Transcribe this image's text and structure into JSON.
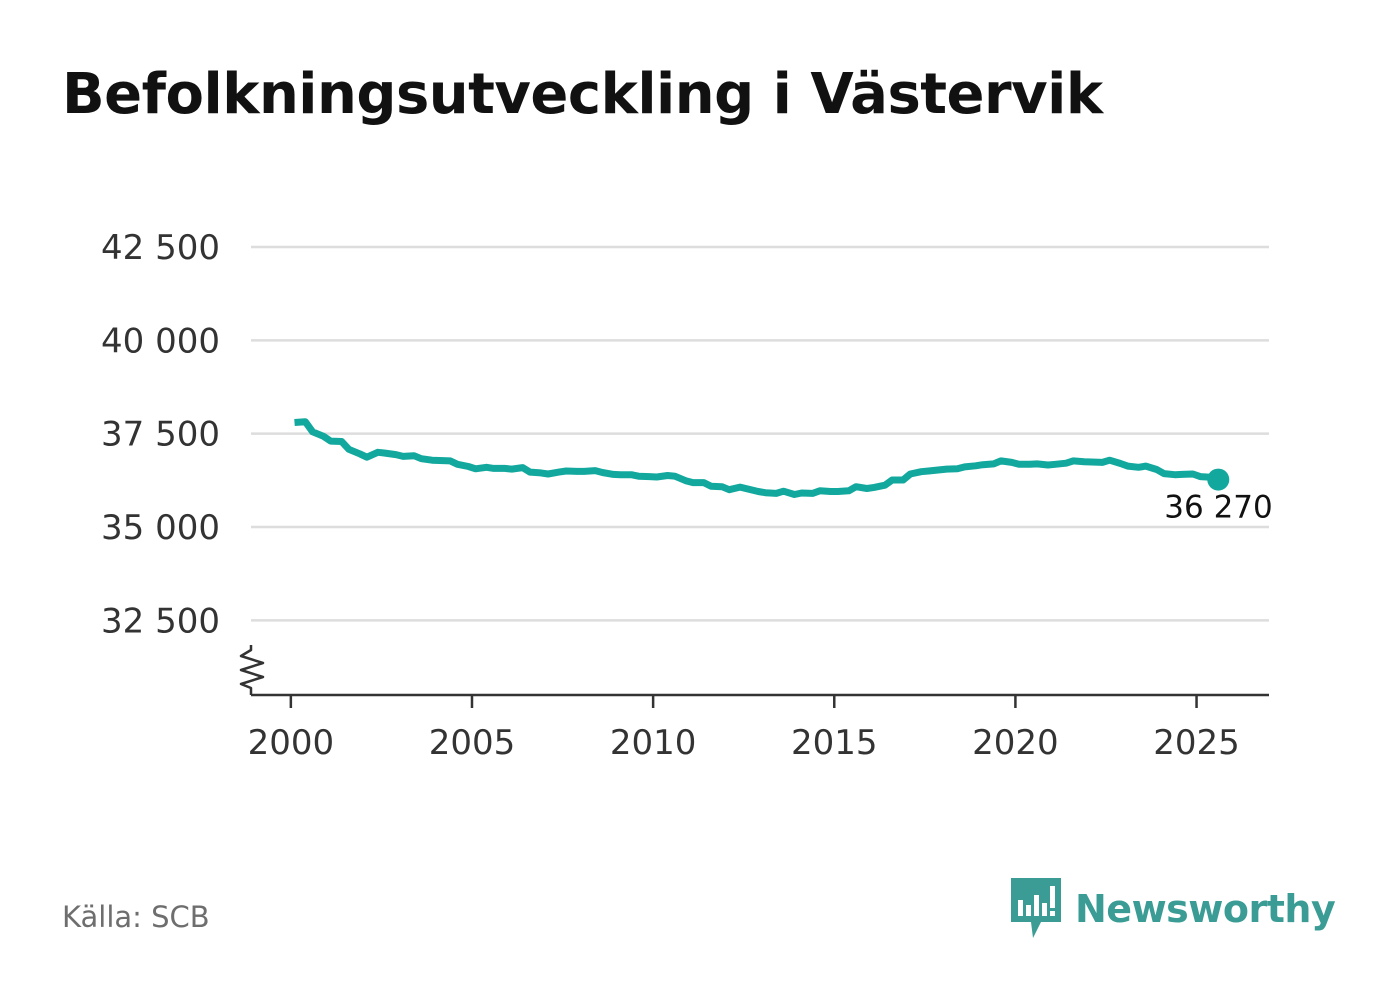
{
  "chart_data": {
    "type": "line",
    "title": "Befolkningsutveckling i Västervik",
    "xlabel": "",
    "ylabel": "",
    "x_ticks": [
      2000,
      2005,
      2010,
      2015,
      2020,
      2025
    ],
    "y_ticks": [
      32500,
      35000,
      37500,
      40000,
      42500
    ],
    "y_tick_labels": [
      "32 500",
      "35 000",
      "37 500",
      "40 000",
      "42 500"
    ],
    "xlim": [
      1998.9,
      2027
    ],
    "ylim": [
      30500,
      42500
    ],
    "axis_break": true,
    "series": [
      {
        "name": "Befolkning",
        "color": "#13a89e",
        "x": [
          2000.1,
          2000.4,
          2000.6,
          2000.9,
          2001.1,
          2001.4,
          2001.6,
          2001.9,
          2002.1,
          2002.4,
          2002.6,
          2002.9,
          2003.1,
          2003.4,
          2003.6,
          2003.9,
          2004.1,
          2004.4,
          2004.6,
          2004.9,
          2005.1,
          2005.4,
          2005.6,
          2005.9,
          2006.1,
          2006.4,
          2006.6,
          2006.9,
          2007.1,
          2007.4,
          2007.6,
          2007.9,
          2008.1,
          2008.4,
          2008.6,
          2008.9,
          2009.1,
          2009.4,
          2009.6,
          2009.9,
          2010.1,
          2010.4,
          2010.6,
          2010.9,
          2011.1,
          2011.4,
          2011.6,
          2011.9,
          2012.1,
          2012.4,
          2012.6,
          2012.9,
          2013.1,
          2013.4,
          2013.6,
          2013.9,
          2014.1,
          2014.4,
          2014.6,
          2014.9,
          2015.1,
          2015.4,
          2015.6,
          2015.9,
          2016.1,
          2016.4,
          2016.6,
          2016.9,
          2017.1,
          2017.4,
          2017.6,
          2017.9,
          2018.1,
          2018.4,
          2018.6,
          2018.9,
          2019.1,
          2019.4,
          2019.6,
          2019.9,
          2020.1,
          2020.4,
          2020.6,
          2020.9,
          2021.1,
          2021.4,
          2021.6,
          2021.9,
          2022.1,
          2022.4,
          2022.6,
          2022.9,
          2023.1,
          2023.4,
          2023.6,
          2023.9,
          2024.1,
          2024.4,
          2024.6,
          2024.9,
          2025.1,
          2025.4,
          2025.6
        ],
        "values": [
          37800,
          37820,
          37550,
          37430,
          37300,
          37290,
          37080,
          36960,
          36870,
          37000,
          36980,
          36940,
          36890,
          36910,
          36830,
          36790,
          36780,
          36770,
          36680,
          36620,
          36560,
          36600,
          36570,
          36570,
          36550,
          36590,
          36470,
          36450,
          36420,
          36470,
          36500,
          36490,
          36490,
          36510,
          36460,
          36410,
          36400,
          36400,
          36360,
          36350,
          36340,
          36380,
          36360,
          36240,
          36190,
          36190,
          36090,
          36080,
          36000,
          36070,
          36020,
          35950,
          35920,
          35900,
          35960,
          35870,
          35910,
          35900,
          35970,
          35950,
          35950,
          35970,
          36080,
          36030,
          36060,
          36120,
          36260,
          36260,
          36420,
          36480,
          36500,
          36530,
          36550,
          36560,
          36610,
          36640,
          36670,
          36690,
          36770,
          36730,
          36680,
          36680,
          36690,
          36660,
          36680,
          36710,
          36770,
          36750,
          36740,
          36730,
          36790,
          36700,
          36630,
          36600,
          36630,
          36540,
          36430,
          36400,
          36410,
          36420,
          36350,
          36330,
          36270
        ]
      }
    ],
    "end_label": "36 270",
    "end_value": 36270
  },
  "source": "Källa: SCB",
  "brand": {
    "name": "Newsworthy",
    "color": "#3a9c95"
  }
}
